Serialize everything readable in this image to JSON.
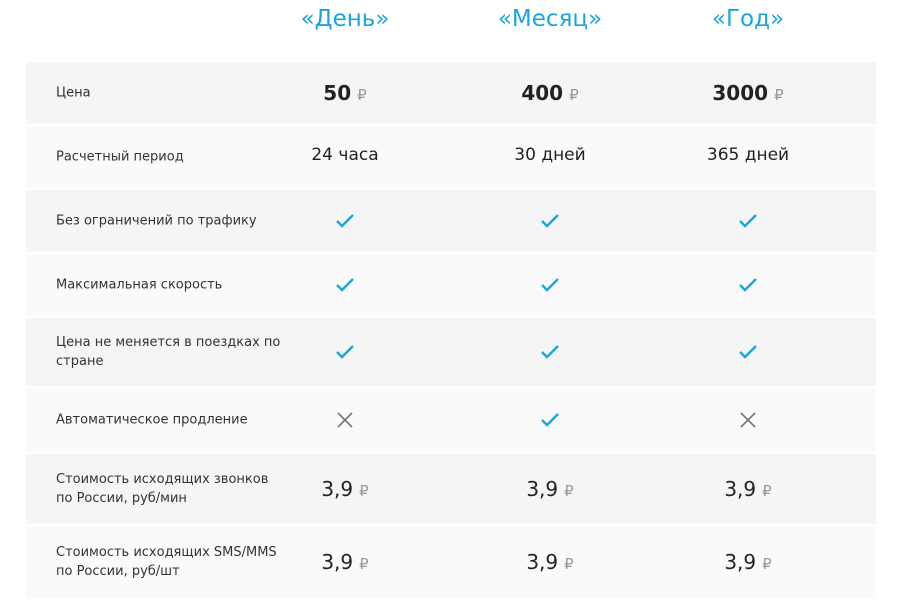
{
  "plans": [
    "«День»",
    "«Месяц»",
    "«Год»"
  ],
  "currency": "₽",
  "accent": "#1aa5df",
  "rows": [
    {
      "label": "Цена",
      "type": "price",
      "values": [
        "50",
        "400",
        "3000"
      ]
    },
    {
      "label": "Расчетный период",
      "type": "text",
      "values": [
        "24 часа",
        "30 дней",
        "365 дней"
      ]
    },
    {
      "label": "Без ограничений по трафику",
      "type": "icon",
      "values": [
        "check",
        "check",
        "check"
      ]
    },
    {
      "label": "Максимальная скорость",
      "type": "icon",
      "values": [
        "check",
        "check",
        "check"
      ]
    },
    {
      "label": "Цена не меняется в поездках по стране",
      "type": "icon",
      "values": [
        "check",
        "check",
        "check"
      ]
    },
    {
      "label": "Автоматическое продление",
      "type": "icon",
      "values": [
        "cross",
        "check",
        "cross"
      ]
    },
    {
      "label": "Стоимость исходящих звонков по России, руб/мин",
      "type": "money",
      "values": [
        "3,9",
        "3,9",
        "3,9"
      ]
    },
    {
      "label": "Стоимость исходящих SMS/MMS по России, руб/шт",
      "type": "money",
      "values": [
        "3,9",
        "3,9",
        "3,9"
      ]
    }
  ]
}
